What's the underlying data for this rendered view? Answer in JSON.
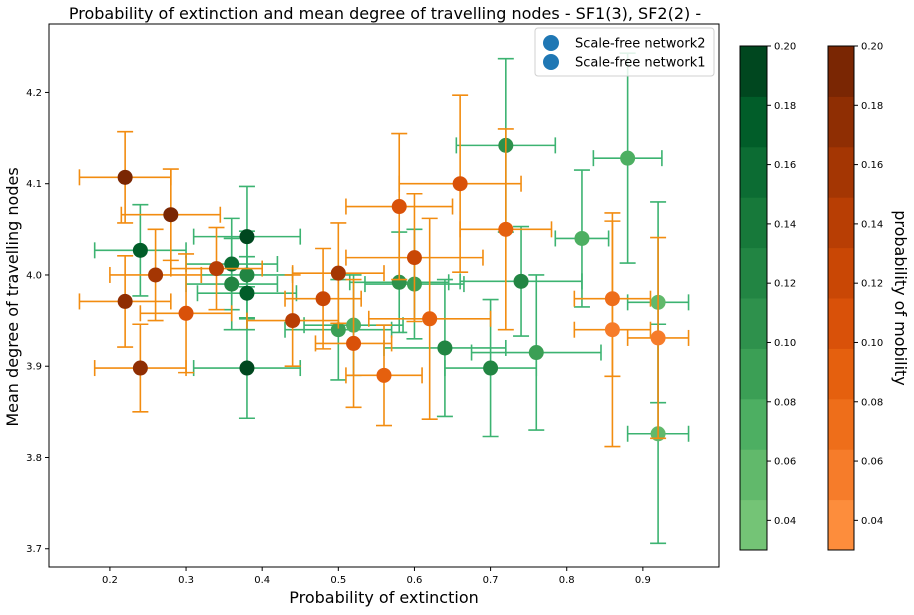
{
  "chart_data": {
    "type": "scatter",
    "title": "Probability of extinction and mean degree of travelling nodes - SF1(3), SF2(2) -",
    "xlabel": "Probability of extinction",
    "ylabel": "Mean degree of travelling nodes",
    "xlim": [
      0.12,
      1.0
    ],
    "ylim": [
      3.68,
      4.275
    ],
    "xticks": [
      "0.2",
      "0.3",
      "0.4",
      "0.5",
      "0.6",
      "0.7",
      "0.8",
      "0.9"
    ],
    "yticks": [
      "3.7",
      "3.8",
      "3.9",
      "4.0",
      "4.1",
      "4.2"
    ],
    "grid": false,
    "legend_position": "top-right",
    "legend": [
      {
        "label": "Scale-free network2",
        "color": "#1f77b4"
      },
      {
        "label": "Scale-free network1",
        "color": "#1f77b4"
      }
    ],
    "colorbars": [
      {
        "name": "Greens",
        "label": "",
        "ticks": [
          "0.04",
          "0.06",
          "0.08",
          "0.10",
          "0.12",
          "0.14",
          "0.16",
          "0.18",
          "0.20"
        ],
        "range": [
          0.03,
          0.2
        ],
        "colors": [
          "#74c476",
          "#61b96b",
          "#4daf62",
          "#3b9f55",
          "#2e914c",
          "#228543",
          "#17793a",
          "#0c6c33",
          "#015d29",
          "#00471f"
        ],
        "errorbar_color": "#3cb371"
      },
      {
        "name": "Oranges",
        "label": "probability of mobility",
        "ticks": [
          "0.04",
          "0.06",
          "0.08",
          "0.10",
          "0.12",
          "0.14",
          "0.16",
          "0.18",
          "0.20"
        ],
        "range": [
          0.03,
          0.2
        ],
        "colors": [
          "#fd8d3c",
          "#f67c2a",
          "#ee6e1a",
          "#e5600e",
          "#d95109",
          "#c94705",
          "#b83e04",
          "#a43603",
          "#8f2e03",
          "#7a2603"
        ],
        "errorbar_color": "#f28c10"
      }
    ],
    "series": [
      {
        "name": "Scale-free network2",
        "colormap": "Greens",
        "points": [
          {
            "x": 0.72,
            "y": 4.142,
            "xerr": 0.065,
            "yerr": 0.095,
            "c": 0.1
          },
          {
            "x": 0.88,
            "y": 4.128,
            "xerr": 0.045,
            "yerr": 0.115,
            "c": 0.08
          },
          {
            "x": 0.82,
            "y": 4.04,
            "xerr": 0.035,
            "yerr": 0.075,
            "c": 0.07
          },
          {
            "x": 0.24,
            "y": 4.027,
            "xerr": 0.06,
            "yerr": 0.05,
            "c": 0.18
          },
          {
            "x": 0.38,
            "y": 4.042,
            "xerr": 0.07,
            "yerr": 0.055,
            "c": 0.2
          },
          {
            "x": 0.36,
            "y": 4.012,
            "xerr": 0.06,
            "yerr": 0.05,
            "c": 0.15
          },
          {
            "x": 0.38,
            "y": 4.0,
            "xerr": 0.06,
            "yerr": 0.048,
            "c": 0.12
          },
          {
            "x": 0.36,
            "y": 3.99,
            "xerr": 0.06,
            "yerr": 0.05,
            "c": 0.13
          },
          {
            "x": 0.38,
            "y": 3.98,
            "xerr": 0.065,
            "yerr": 0.04,
            "c": 0.17
          },
          {
            "x": 0.58,
            "y": 3.992,
            "xerr": 0.065,
            "yerr": 0.055,
            "c": 0.1
          },
          {
            "x": 0.6,
            "y": 3.99,
            "xerr": 0.065,
            "yerr": 0.06,
            "c": 0.09
          },
          {
            "x": 0.74,
            "y": 3.993,
            "xerr": 0.08,
            "yerr": 0.06,
            "c": 0.13
          },
          {
            "x": 0.92,
            "y": 3.97,
            "xerr": 0.04,
            "yerr": 0.11,
            "c": 0.06
          },
          {
            "x": 0.5,
            "y": 3.94,
            "xerr": 0.07,
            "yerr": 0.055,
            "c": 0.09
          },
          {
            "x": 0.52,
            "y": 3.945,
            "xerr": 0.065,
            "yerr": 0.055,
            "c": 0.08
          },
          {
            "x": 0.64,
            "y": 3.92,
            "xerr": 0.08,
            "yerr": 0.075,
            "c": 0.12
          },
          {
            "x": 0.76,
            "y": 3.915,
            "xerr": 0.085,
            "yerr": 0.085,
            "c": 0.09
          },
          {
            "x": 0.7,
            "y": 3.898,
            "xerr": 0.06,
            "yerr": 0.075,
            "c": 0.13
          },
          {
            "x": 0.38,
            "y": 3.898,
            "xerr": 0.07,
            "yerr": 0.055,
            "c": 0.19
          },
          {
            "x": 0.92,
            "y": 3.826,
            "xerr": 0.04,
            "yerr": 0.12,
            "c": 0.05
          }
        ]
      },
      {
        "name": "Scale-free network1",
        "colormap": "Oranges",
        "points": [
          {
            "x": 0.22,
            "y": 4.107,
            "xerr": 0.06,
            "yerr": 0.05,
            "c": 0.19
          },
          {
            "x": 0.28,
            "y": 4.066,
            "xerr": 0.065,
            "yerr": 0.05,
            "c": 0.19
          },
          {
            "x": 0.66,
            "y": 4.1,
            "xerr": 0.08,
            "yerr": 0.097,
            "c": 0.1
          },
          {
            "x": 0.58,
            "y": 4.075,
            "xerr": 0.07,
            "yerr": 0.08,
            "c": 0.1
          },
          {
            "x": 0.72,
            "y": 4.05,
            "xerr": 0.06,
            "yerr": 0.11,
            "c": 0.09
          },
          {
            "x": 0.6,
            "y": 4.019,
            "xerr": 0.09,
            "yerr": 0.07,
            "c": 0.12
          },
          {
            "x": 0.26,
            "y": 4.0,
            "xerr": 0.06,
            "yerr": 0.05,
            "c": 0.15
          },
          {
            "x": 0.34,
            "y": 4.007,
            "xerr": 0.06,
            "yerr": 0.045,
            "c": 0.14
          },
          {
            "x": 0.5,
            "y": 4.002,
            "xerr": 0.06,
            "yerr": 0.055,
            "c": 0.15
          },
          {
            "x": 0.22,
            "y": 3.971,
            "xerr": 0.06,
            "yerr": 0.05,
            "c": 0.18
          },
          {
            "x": 0.48,
            "y": 3.974,
            "xerr": 0.05,
            "yerr": 0.055,
            "c": 0.12
          },
          {
            "x": 0.86,
            "y": 3.974,
            "xerr": 0.05,
            "yerr": 0.085,
            "c": 0.07
          },
          {
            "x": 0.3,
            "y": 3.958,
            "xerr": 0.06,
            "yerr": 0.065,
            "c": 0.11
          },
          {
            "x": 0.44,
            "y": 3.95,
            "xerr": 0.06,
            "yerr": 0.05,
            "c": 0.14
          },
          {
            "x": 0.62,
            "y": 3.952,
            "xerr": 0.08,
            "yerr": 0.11,
            "c": 0.09
          },
          {
            "x": 0.86,
            "y": 3.94,
            "xerr": 0.05,
            "yerr": 0.128,
            "c": 0.06
          },
          {
            "x": 0.52,
            "y": 3.925,
            "xerr": 0.05,
            "yerr": 0.07,
            "c": 0.11
          },
          {
            "x": 0.92,
            "y": 3.931,
            "xerr": 0.04,
            "yerr": 0.11,
            "c": 0.06
          },
          {
            "x": 0.24,
            "y": 3.898,
            "xerr": 0.06,
            "yerr": 0.048,
            "c": 0.18
          },
          {
            "x": 0.56,
            "y": 3.89,
            "xerr": 0.05,
            "yerr": 0.055,
            "c": 0.09
          }
        ]
      }
    ]
  }
}
